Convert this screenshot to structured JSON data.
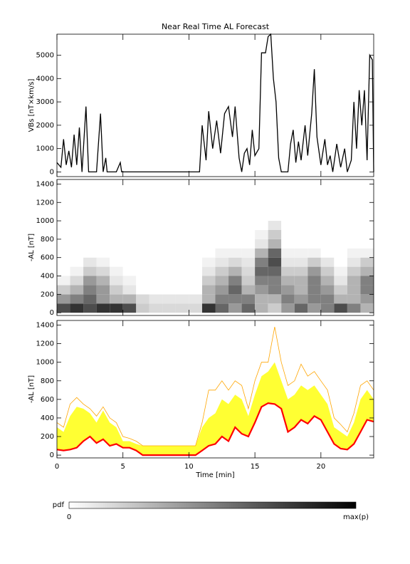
{
  "chart_data": [
    {
      "type": "line",
      "title": "Near Real Time AL Forecast",
      "ylabel": "VBs [nT×km/s]",
      "x": [
        0,
        0.3,
        0.5,
        0.7,
        0.9,
        1.1,
        1.3,
        1.5,
        1.7,
        1.9,
        2.2,
        2.4,
        3.0,
        3.3,
        3.5,
        3.7,
        3.8,
        4.5,
        4.8,
        4.9,
        6,
        10.8,
        11.0,
        11.3,
        11.5,
        11.8,
        12.1,
        12.4,
        12.7,
        13.0,
        13.3,
        13.5,
        13.8,
        14.0,
        14.2,
        14.4,
        14.6,
        14.8,
        15.0,
        15.3,
        15.5,
        15.8,
        16.0,
        16.2,
        16.4,
        16.6,
        16.8,
        17.0,
        17.5,
        17.7,
        17.9,
        18.1,
        18.3,
        18.5,
        18.8,
        19.0,
        19.3,
        19.5,
        19.7,
        20.0,
        20.3,
        20.5,
        20.7,
        20.9,
        21.2,
        21.5,
        21.8,
        22.0,
        22.3,
        22.5,
        22.7,
        22.9,
        23.1,
        23.3,
        23.5,
        23.7,
        23.9,
        24
      ],
      "values": [
        400,
        200,
        1400,
        300,
        900,
        200,
        1600,
        300,
        1900,
        0,
        2800,
        0,
        0,
        2500,
        0,
        600,
        0,
        0,
        400,
        0,
        0,
        0,
        2000,
        500,
        2600,
        1000,
        2200,
        800,
        2500,
        2800,
        1500,
        2800,
        600,
        0,
        800,
        1000,
        300,
        1800,
        700,
        1000,
        5100,
        5100,
        5800,
        5900,
        4000,
        3000,
        600,
        0,
        0,
        1200,
        1800,
        400,
        1300,
        500,
        2000,
        700,
        2500,
        4400,
        1500,
        300,
        1400,
        300,
        700,
        0,
        1200,
        200,
        1000,
        0,
        500,
        3000,
        1000,
        3500,
        2000,
        3500,
        500,
        5000,
        4800,
        0
      ],
      "color": "#000000",
      "xlim": [
        0,
        24
      ],
      "xticks": [
        0,
        5,
        10,
        15,
        20
      ],
      "ylim": [
        -200,
        5900
      ],
      "yticks": [
        0,
        1000,
        2000,
        3000,
        4000,
        5000
      ]
    },
    {
      "type": "heatmap",
      "ylabel": "-AL [nT]",
      "x_bins": [
        0,
        1,
        2,
        3,
        4,
        5,
        6,
        7,
        8,
        9,
        10,
        11,
        12,
        13,
        14,
        15,
        16,
        17,
        18,
        19,
        20,
        21,
        22,
        23,
        24
      ],
      "y_bins": [
        0,
        100,
        200,
        300,
        400,
        500,
        600,
        700,
        800,
        900,
        1000
      ],
      "z": [
        [
          0.7,
          0.4,
          0.2,
          0.05,
          0,
          0,
          0,
          0,
          0,
          0
        ],
        [
          0.8,
          0.5,
          0.3,
          0.15,
          0.05,
          0,
          0,
          0,
          0,
          0
        ],
        [
          0.7,
          0.6,
          0.5,
          0.4,
          0.2,
          0.1,
          0,
          0,
          0,
          0
        ],
        [
          0.8,
          0.4,
          0.4,
          0.3,
          0.15,
          0.05,
          0,
          0,
          0,
          0
        ],
        [
          0.8,
          0.3,
          0.2,
          0.1,
          0.05,
          0,
          0,
          0,
          0,
          0
        ],
        [
          0.7,
          0.3,
          0.1,
          0.05,
          0,
          0,
          0,
          0,
          0,
          0
        ],
        [
          0.2,
          0.15,
          0,
          0,
          0,
          0,
          0,
          0,
          0,
          0
        ],
        [
          0.15,
          0.1,
          0,
          0,
          0,
          0,
          0,
          0,
          0,
          0
        ],
        [
          0.15,
          0.1,
          0,
          0,
          0,
          0,
          0,
          0,
          0,
          0
        ],
        [
          0.15,
          0.1,
          0,
          0,
          0,
          0,
          0,
          0,
          0,
          0
        ],
        [
          0.15,
          0.1,
          0,
          0,
          0,
          0,
          0,
          0,
          0,
          0
        ],
        [
          0.8,
          0.3,
          0.3,
          0.2,
          0.1,
          0.05,
          0,
          0,
          0,
          0
        ],
        [
          0.6,
          0.5,
          0.4,
          0.3,
          0.2,
          0.1,
          0.05,
          0,
          0,
          0
        ],
        [
          0.4,
          0.5,
          0.6,
          0.5,
          0.3,
          0.15,
          0.05,
          0,
          0,
          0
        ],
        [
          0.6,
          0.5,
          0.3,
          0.2,
          0.15,
          0.1,
          0.05,
          0,
          0,
          0
        ],
        [
          0.3,
          0.3,
          0.4,
          0.5,
          0.6,
          0.5,
          0.3,
          0.1,
          0.05,
          0
        ],
        [
          0.2,
          0.3,
          0.5,
          0.5,
          0.6,
          0.7,
          0.6,
          0.3,
          0.2,
          0.1
        ],
        [
          0.4,
          0.5,
          0.4,
          0.3,
          0.2,
          0.1,
          0.05,
          0,
          0,
          0
        ],
        [
          0.6,
          0.4,
          0.3,
          0.3,
          0.2,
          0.1,
          0.05,
          0,
          0,
          0
        ],
        [
          0.4,
          0.5,
          0.5,
          0.5,
          0.4,
          0.2,
          0.05,
          0,
          0,
          0
        ],
        [
          0.5,
          0.5,
          0.4,
          0.3,
          0.2,
          0.1,
          0,
          0,
          0,
          0
        ],
        [
          0.7,
          0.3,
          0.2,
          0.1,
          0.05,
          0,
          0,
          0,
          0,
          0
        ],
        [
          0.5,
          0.3,
          0.3,
          0.3,
          0.2,
          0.1,
          0.05,
          0,
          0,
          0
        ],
        [
          0.3,
          0.4,
          0.5,
          0.5,
          0.3,
          0.2,
          0.05,
          0,
          0,
          0
        ]
      ],
      "xlim": [
        0,
        24
      ],
      "xticks": [
        0,
        5,
        10,
        15,
        20
      ],
      "ylim": [
        -30,
        1450
      ],
      "yticks": [
        0,
        200,
        400,
        600,
        800,
        1000,
        1200,
        1400
      ]
    },
    {
      "type": "band",
      "ylabel": "-AL [nT]",
      "xlabel": "Time [min]",
      "x": [
        0,
        0.5,
        1,
        1.5,
        2,
        2.5,
        3,
        3.5,
        4,
        4.5,
        5,
        5.5,
        6,
        6.5,
        7,
        7.5,
        8,
        8.5,
        9,
        9.5,
        10,
        10.5,
        11,
        11.5,
        12,
        12.5,
        13,
        13.5,
        14,
        14.5,
        15,
        15.5,
        16,
        16.5,
        17,
        17.5,
        18,
        18.5,
        19,
        19.5,
        20,
        20.5,
        21,
        21.5,
        22,
        22.5,
        23,
        23.5,
        24
      ],
      "series": [
        {
          "color": "#ff0000",
          "values": [
            60,
            50,
            60,
            80,
            150,
            200,
            130,
            170,
            100,
            120,
            80,
            80,
            50,
            0,
            0,
            0,
            0,
            0,
            0,
            0,
            0,
            0,
            50,
            100,
            120,
            200,
            150,
            300,
            230,
            200,
            350,
            520,
            560,
            550,
            500,
            250,
            300,
            380,
            340,
            420,
            380,
            250,
            120,
            70,
            60,
            120,
            250,
            380,
            360
          ]
        },
        {
          "color": "#ffff33",
          "values": [
            300,
            250,
            420,
            520,
            500,
            450,
            350,
            480,
            350,
            300,
            150,
            150,
            120,
            100,
            100,
            100,
            100,
            100,
            100,
            100,
            100,
            100,
            300,
            400,
            450,
            600,
            550,
            650,
            600,
            420,
            650,
            850,
            900,
            1000,
            800,
            600,
            650,
            750,
            700,
            750,
            650,
            550,
            300,
            250,
            200,
            350,
            600,
            700,
            600
          ]
        },
        {
          "color": "#ffa500",
          "values": [
            350,
            300,
            550,
            620,
            550,
            500,
            420,
            520,
            400,
            350,
            200,
            180,
            150,
            100,
            100,
            100,
            100,
            100,
            100,
            100,
            100,
            100,
            350,
            700,
            700,
            800,
            700,
            800,
            750,
            500,
            800,
            1000,
            1000,
            1380,
            1000,
            750,
            800,
            980,
            850,
            900,
            800,
            700,
            400,
            330,
            250,
            450,
            750,
            800,
            700
          ]
        }
      ],
      "xlim": [
        0,
        24
      ],
      "xticks": [
        0,
        5,
        10,
        15,
        20
      ],
      "ylim": [
        -30,
        1450
      ],
      "yticks": [
        0,
        200,
        400,
        600,
        800,
        1000,
        1200,
        1400
      ]
    }
  ],
  "colorbar": {
    "label": "pdf",
    "min_label": "0",
    "max_label": "max(p)"
  }
}
